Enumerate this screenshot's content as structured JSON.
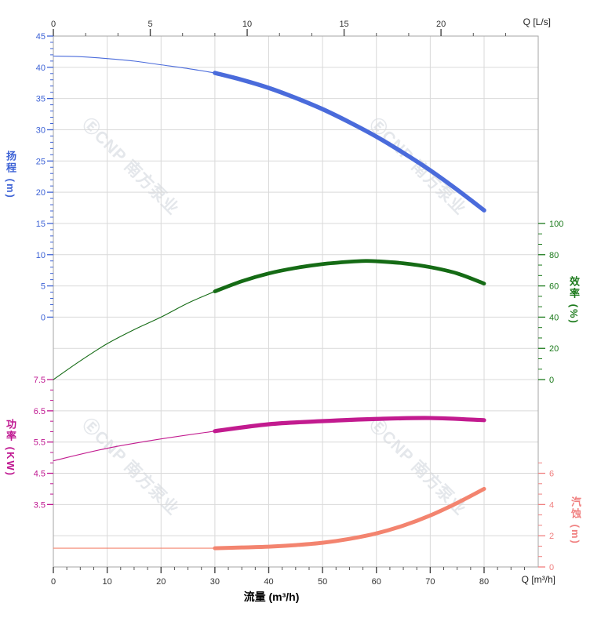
{
  "watermark": {
    "text": "ⒺCNP 南方泵业",
    "color": "#e4e7eb"
  },
  "titles": {
    "top_axis": "Q [L/s]",
    "bottom_axis": "Q [m³/h]",
    "flow_label": "流量 (m³/h)",
    "head_axis": "扬程 (m)",
    "power_axis": "功率 (KW)",
    "eff_axis": "效率 (%)",
    "npsh_axis": "汽蚀 (m)"
  },
  "colors": {
    "head_curve": "#4a6bdb",
    "head_text": "#3e63d6",
    "eff_curve": "#156b15",
    "eff_text": "#1b7a1b",
    "power_curve": "#c21b8f",
    "power_text": "#bf1690",
    "npsh_curve": "#f3846f",
    "npsh_text": "#f08080",
    "grid": "#d9d9d9",
    "border": "#a6a6a6",
    "xaxis_text": "#333333"
  },
  "chart_data": {
    "type": "line",
    "title": "",
    "x_bottom": {
      "label": "流量 (m³/h)",
      "unit": "Q [m³/h]",
      "ticks": [
        0,
        10,
        20,
        30,
        40,
        50,
        60,
        70,
        80
      ],
      "range": [
        0,
        90
      ]
    },
    "x_top": {
      "unit": "Q [L/s]",
      "ticks": [
        0,
        5,
        10,
        15,
        20
      ],
      "range": [
        0,
        25
      ]
    },
    "grid": "on",
    "thick_from_x": 30,
    "axes": {
      "head": {
        "label": "扬程 (m)",
        "ticks": [
          45,
          40,
          35,
          30,
          25,
          20,
          15,
          10,
          5,
          0
        ]
      },
      "power": {
        "label": "功率 (KW)",
        "ticks": [
          7.5,
          6.5,
          5.5,
          4.5,
          3.5
        ]
      },
      "eff": {
        "label": "效率 (%)",
        "ticks": [
          100,
          80,
          60,
          40,
          20,
          0
        ]
      },
      "npsh": {
        "label": "汽蚀 (m)",
        "ticks": [
          6,
          4,
          2,
          0
        ]
      }
    },
    "series": [
      {
        "name": "head",
        "axis": "head",
        "unit": "m",
        "x": [
          0,
          5,
          10,
          15,
          20,
          25,
          30,
          35,
          40,
          45,
          50,
          55,
          60,
          65,
          70,
          75,
          80
        ],
        "y": [
          41.8,
          41.7,
          41.4,
          41.0,
          40.4,
          39.8,
          39.1,
          38.0,
          36.7,
          35.1,
          33.3,
          31.2,
          28.9,
          26.3,
          23.5,
          20.4,
          17.1
        ]
      },
      {
        "name": "efficiency",
        "axis": "eff",
        "unit": "%",
        "x": [
          0,
          5,
          10,
          15,
          20,
          25,
          30,
          35,
          40,
          45,
          50,
          55,
          58,
          60,
          65,
          70,
          75,
          80
        ],
        "y": [
          0,
          12,
          23,
          32,
          40,
          49,
          56.5,
          63,
          68,
          71.5,
          74,
          75.5,
          76,
          75.8,
          74.5,
          72,
          68,
          61.5
        ]
      },
      {
        "name": "power",
        "axis": "power",
        "unit": "KW",
        "x": [
          0,
          10,
          20,
          30,
          40,
          50,
          60,
          70,
          80
        ],
        "y": [
          4.9,
          5.3,
          5.6,
          5.85,
          6.07,
          6.17,
          6.24,
          6.27,
          6.2
        ]
      },
      {
        "name": "npsh",
        "axis": "npsh",
        "unit": "m",
        "x": [
          0,
          10,
          20,
          30,
          35,
          40,
          45,
          50,
          55,
          60,
          65,
          70,
          75,
          80
        ],
        "y": [
          1.2,
          1.2,
          1.2,
          1.2,
          1.25,
          1.3,
          1.4,
          1.55,
          1.8,
          2.15,
          2.65,
          3.3,
          4.1,
          5.0
        ]
      }
    ]
  }
}
